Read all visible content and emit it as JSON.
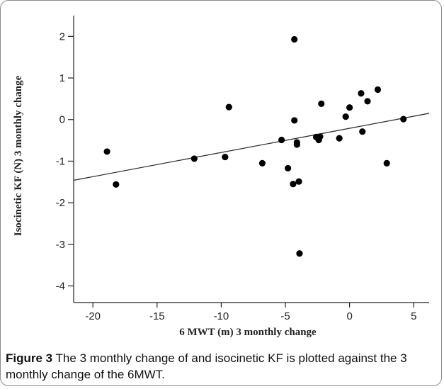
{
  "caption": {
    "label": "Figure 3",
    "text": "The 3 monthly change of and isocinetic KF is plotted against the 3 monthly change of the 6MWT."
  },
  "chart_data": {
    "type": "scatter",
    "title": "",
    "xlabel": "6 MWT (m) 3 monthly change",
    "ylabel": "Isocinetic KF (N) 3 monthly change",
    "xlim": [
      -21.5,
      6.2
    ],
    "ylim": [
      -4.4,
      2.5
    ],
    "xticks": [
      -20,
      -15,
      -10,
      -5,
      0,
      5
    ],
    "yticks": [
      2,
      1,
      0,
      -1,
      -2,
      -3,
      -4
    ],
    "grid": false,
    "legend": "none",
    "colors": {
      "point": "#000000",
      "axis": "#222222"
    },
    "points": [
      {
        "x": -18.9,
        "y": -0.77
      },
      {
        "x": -18.2,
        "y": -1.56
      },
      {
        "x": -12.1,
        "y": -0.94
      },
      {
        "x": -9.7,
        "y": -0.9
      },
      {
        "x": -9.4,
        "y": 0.3
      },
      {
        "x": -6.8,
        "y": -1.05
      },
      {
        "x": -5.3,
        "y": -0.49
      },
      {
        "x": -4.8,
        "y": -1.17
      },
      {
        "x": -4.4,
        "y": -1.55
      },
      {
        "x": -4.3,
        "y": 1.93
      },
      {
        "x": -4.3,
        "y": -0.02
      },
      {
        "x": -4.1,
        "y": -0.55
      },
      {
        "x": -4.1,
        "y": -0.6
      },
      {
        "x": -3.95,
        "y": -1.49
      },
      {
        "x": -3.9,
        "y": -3.22
      },
      {
        "x": -2.6,
        "y": -0.42
      },
      {
        "x": -2.4,
        "y": -0.49
      },
      {
        "x": -2.3,
        "y": -0.41
      },
      {
        "x": -2.2,
        "y": 0.38
      },
      {
        "x": -0.8,
        "y": -0.45
      },
      {
        "x": -0.3,
        "y": 0.07
      },
      {
        "x": 0.0,
        "y": 0.29
      },
      {
        "x": 0.9,
        "y": 0.63
      },
      {
        "x": 1.0,
        "y": -0.29
      },
      {
        "x": 1.4,
        "y": 0.44
      },
      {
        "x": 2.2,
        "y": 0.72
      },
      {
        "x": 2.9,
        "y": -1.05
      },
      {
        "x": 4.2,
        "y": 0.01
      }
    ],
    "fit_line": {
      "x": [
        -21.5,
        6.2
      ],
      "y": [
        -1.46,
        0.15
      ]
    }
  }
}
